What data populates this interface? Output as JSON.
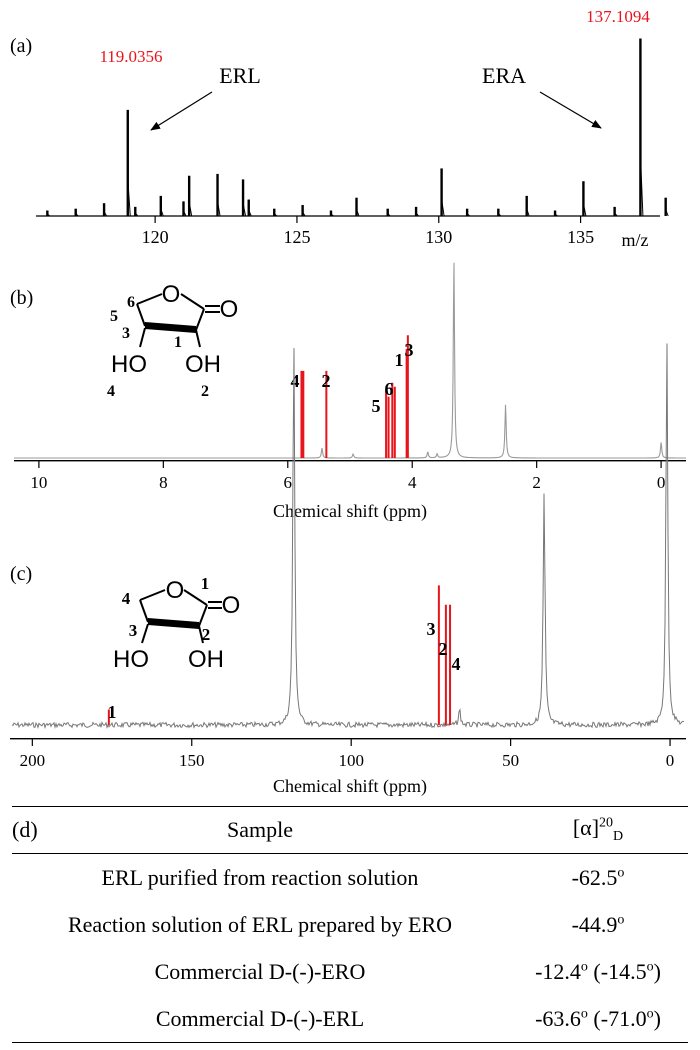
{
  "chart_data": [
    {
      "panel": "(a)",
      "type": "bar",
      "title": "",
      "xlabel": "m/z",
      "ylabel": "",
      "xlim": [
        115.8,
        137.8
      ],
      "ylim": [
        0,
        1
      ],
      "xticks": [
        "120",
        "125",
        "130",
        "135"
      ],
      "xtick_values": [
        120,
        125,
        130,
        135
      ],
      "peak_labels": [
        {
          "x": 119.0356,
          "text": "119.0356",
          "color": "#e8141b"
        },
        {
          "x": 137.1094,
          "text": "137.1094",
          "color": "#e8141b"
        }
      ],
      "annotations": [
        {
          "text": "ERL",
          "points_to": 119.0356
        },
        {
          "text": "ERA",
          "points_to": 137.1094
        }
      ],
      "peaks": [
        {
          "x": 116.2,
          "y": 0.03
        },
        {
          "x": 117.2,
          "y": 0.04
        },
        {
          "x": 118.2,
          "y": 0.07
        },
        {
          "x": 119.0356,
          "y": 0.58
        },
        {
          "x": 119.3,
          "y": 0.05
        },
        {
          "x": 120.2,
          "y": 0.11
        },
        {
          "x": 121.0,
          "y": 0.08
        },
        {
          "x": 121.2,
          "y": 0.22
        },
        {
          "x": 122.2,
          "y": 0.23
        },
        {
          "x": 123.1,
          "y": 0.2
        },
        {
          "x": 123.3,
          "y": 0.09
        },
        {
          "x": 124.2,
          "y": 0.04
        },
        {
          "x": 125.2,
          "y": 0.06
        },
        {
          "x": 126.2,
          "y": 0.03
        },
        {
          "x": 127.1,
          "y": 0.1
        },
        {
          "x": 128.2,
          "y": 0.04
        },
        {
          "x": 129.2,
          "y": 0.05
        },
        {
          "x": 130.1,
          "y": 0.26
        },
        {
          "x": 131.0,
          "y": 0.04
        },
        {
          "x": 132.1,
          "y": 0.04
        },
        {
          "x": 133.1,
          "y": 0.11
        },
        {
          "x": 134.1,
          "y": 0.03
        },
        {
          "x": 135.1,
          "y": 0.19
        },
        {
          "x": 136.2,
          "y": 0.05
        },
        {
          "x": 137.1094,
          "y": 0.97
        },
        {
          "x": 138.0,
          "y": 0.1
        }
      ]
    },
    {
      "panel": "(b)",
      "type": "line",
      "title": "",
      "xlabel": "Chemical shift (ppm)",
      "ylabel": "",
      "xlim": [
        10.4,
        -0.4
      ],
      "ylim": [
        0,
        1
      ],
      "xticks": [
        "10",
        "8",
        "6",
        "4",
        "2",
        "0"
      ],
      "xtick_values": [
        10,
        8,
        6,
        4,
        2,
        0
      ],
      "peaks": [
        {
          "x": 5.78,
          "y": 0.44,
          "color": "red",
          "label": "4"
        },
        {
          "x": 5.75,
          "y": 0.44,
          "color": "red"
        },
        {
          "x": 5.38,
          "y": 0.44,
          "color": "red",
          "label": "2"
        },
        {
          "x": 4.42,
          "y": 0.34,
          "color": "red",
          "label": "5"
        },
        {
          "x": 4.38,
          "y": 0.31,
          "color": "red"
        },
        {
          "x": 4.32,
          "y": 0.38,
          "color": "red",
          "label": "6"
        },
        {
          "x": 4.28,
          "y": 0.36,
          "color": "red"
        },
        {
          "x": 4.09,
          "y": 0.55,
          "color": "red",
          "label": "1"
        },
        {
          "x": 4.07,
          "y": 0.62,
          "color": "red",
          "label": "3"
        },
        {
          "x": 3.33,
          "y": 1.0,
          "color": "gray"
        },
        {
          "x": 2.5,
          "y": 0.27,
          "color": "gray"
        },
        {
          "x": 0.0,
          "y": 0.08,
          "color": "gray"
        },
        {
          "x": 5.45,
          "y": 0.05,
          "color": "gray"
        },
        {
          "x": 4.95,
          "y": 0.02,
          "color": "gray"
        },
        {
          "x": 3.75,
          "y": 0.03,
          "color": "gray"
        },
        {
          "x": 3.6,
          "y": 0.02,
          "color": "gray"
        }
      ]
    },
    {
      "panel": "(c)",
      "type": "line",
      "title": "",
      "xlabel": "Chemical shift (ppm)",
      "ylabel": "",
      "xlim": [
        207,
        -5
      ],
      "ylim": [
        0,
        1
      ],
      "xticks": [
        "200",
        "150",
        "100",
        "50",
        "0"
      ],
      "xtick_values": [
        200,
        150,
        100,
        50,
        0
      ],
      "peaks": [
        {
          "x": 176.0,
          "y": 0.04,
          "color": "red",
          "label": "1"
        },
        {
          "x": 72.5,
          "y": 0.36,
          "color": "red",
          "label": "3"
        },
        {
          "x": 70.3,
          "y": 0.31,
          "color": "red",
          "label": "2"
        },
        {
          "x": 69.0,
          "y": 0.31,
          "color": "red",
          "label": "4"
        },
        {
          "x": 118.0,
          "y": 1.0,
          "color": "gray"
        },
        {
          "x": 39.5,
          "y": 0.6,
          "color": "gray"
        },
        {
          "x": 1.0,
          "y": 1.0,
          "color": "gray"
        },
        {
          "x": 66.0,
          "y": 0.04,
          "color": "gray"
        }
      ]
    },
    {
      "panel": "(d)",
      "type": "table",
      "columns": [
        "Sample",
        "[α]20D"
      ],
      "rows": [
        [
          "ERL purified from reaction solution",
          "-62.5°"
        ],
        [
          "Reaction solution of ERL prepared by ERO",
          "-44.9°"
        ],
        [
          "Commercial D-(-)-ERO",
          "-12.4° (-14.5°)"
        ],
        [
          "Commercial D-(-)-ERL",
          "-63.6° (-71.0°)"
        ]
      ]
    }
  ],
  "panels": {
    "a": {
      "tag": "(a)",
      "xlabel": "m/z",
      "label_left": "ERL",
      "label_right": "ERA",
      "peak_left": "119.0356",
      "peak_right": "137.1094"
    },
    "b": {
      "tag": "(b)",
      "xlabel": "Chemical shift (ppm)",
      "mol": {
        "O_ring": "O",
        "O_carbonyl": "O",
        "HO": "HO",
        "OH": "OH",
        "n5": "5",
        "n6": "6",
        "n3": "3",
        "n1": "1",
        "n4": "4",
        "n2": "2"
      },
      "peak_labels": {
        "p4": "4",
        "p2": "2",
        "p5": "5",
        "p6": "6",
        "p1": "1",
        "p3": "3"
      }
    },
    "c": {
      "tag": "(c)",
      "xlabel": "Chemical shift (ppm)",
      "mol": {
        "O_ring": "O",
        "O_carbonyl": "O",
        "HO": "HO",
        "OH": "OH",
        "n4": "4",
        "n1": "1",
        "n3": "3",
        "n2": "2"
      },
      "peak_labels": {
        "p1": "1",
        "p3": "3",
        "p2": "2",
        "p4": "4"
      }
    }
  },
  "table": {
    "panel": "(d)",
    "col_sample": "Sample",
    "col_rot_main": "[α]",
    "col_rot_sup": "20",
    "col_rot_sub": "D",
    "rows": [
      {
        "sample": "ERL purified from reaction solution",
        "value": "-62.5",
        "deg": "o",
        "extra": ""
      },
      {
        "sample": "Reaction solution of ERL prepared by ERO",
        "value": "-44.9",
        "deg": "o",
        "extra": ""
      },
      {
        "sample": "Commercial D-(-)-ERO",
        "value": "-12.4",
        "deg": "o",
        "extra_open": " (-14.5",
        "extra_deg": "o",
        "extra_close": ")"
      },
      {
        "sample": "Commercial D-(-)-ERL",
        "value": "-63.6",
        "deg": "o",
        "extra_open": " (-71.0",
        "extra_deg": "o",
        "extra_close": ")"
      }
    ]
  },
  "colors": {
    "red": "#e8141b",
    "gray": "#9a9a9a",
    "black": "#000000"
  }
}
